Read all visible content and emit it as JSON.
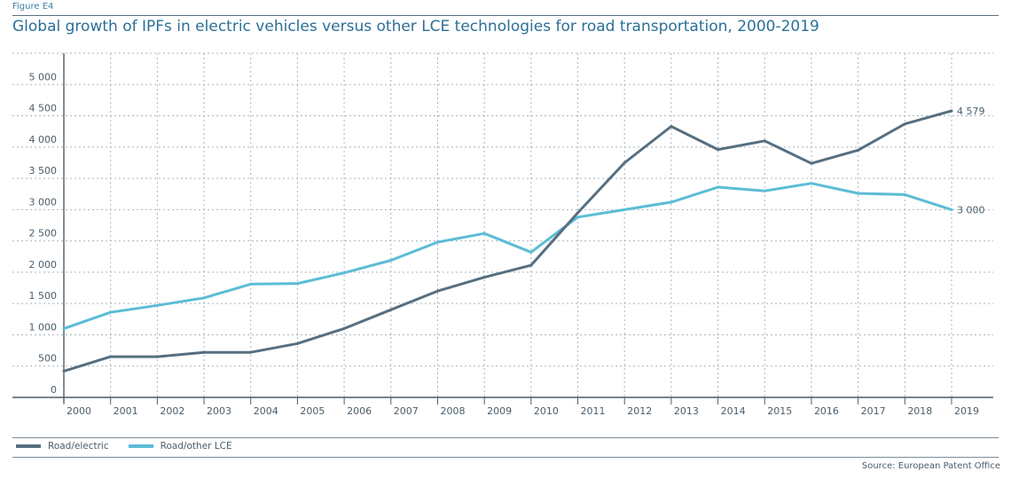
{
  "figure_label": "Figure E4",
  "source": "Source: European Patent Office",
  "colors": {
    "series0": "#566f80",
    "series1": "#5bbcd6",
    "grid": "#a8b4bc",
    "axis": "#4a5d6a"
  },
  "chart_data": {
    "type": "line",
    "title": "Global growth of IPFs in electric vehicles versus other LCE technologies for road transportation, 2000-2019",
    "xlabel": "",
    "ylabel": "",
    "categories": [
      "2000",
      "2001",
      "2002",
      "2003",
      "2004",
      "2005",
      "2006",
      "2007",
      "2008",
      "2009",
      "2010",
      "2011",
      "2012",
      "2013",
      "2014",
      "2015",
      "2016",
      "2017",
      "2018",
      "2019"
    ],
    "ylim": [
      0,
      5500
    ],
    "yticks": [
      0,
      500,
      1000,
      1500,
      2000,
      2500,
      3000,
      3500,
      4000,
      4500,
      5000
    ],
    "ytick_labels": [
      "0",
      "500",
      "1 000",
      "1 500",
      "2 000",
      "2 500",
      "3 000",
      "3 500",
      "4 000",
      "4 500",
      "5 000"
    ],
    "series": [
      {
        "name": "Road/electric",
        "values": [
          420,
          650,
          650,
          720,
          720,
          860,
          1100,
          1400,
          1700,
          1920,
          2110,
          2950,
          3750,
          4330,
          3960,
          4100,
          3740,
          3950,
          4370,
          4579
        ],
        "end_label": "4 579"
      },
      {
        "name": "Road/other LCE",
        "values": [
          1100,
          1360,
          1470,
          1590,
          1810,
          1820,
          1990,
          2190,
          2480,
          2620,
          2320,
          2880,
          3000,
          3120,
          3360,
          3300,
          3420,
          3260,
          3240,
          3000
        ],
        "end_label": "3 000"
      }
    ],
    "legend": [
      "Road/electric",
      "Road/other LCE"
    ],
    "legend_position": "bottom-left",
    "grid": true
  }
}
